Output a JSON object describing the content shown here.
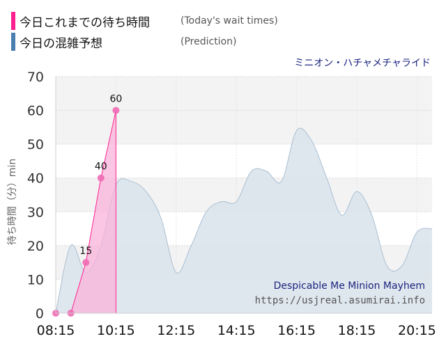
{
  "legend": {
    "actual_label": "今日これまでの待ち時間",
    "actual_label_en": "(Today's wait times)",
    "prediction_label": "今日の混雑予想",
    "prediction_label_en": "(Prediction)"
  },
  "ride_name": "ミニオン・ハチャメチャライド",
  "watermark": {
    "title_en": "Despicable Me Minion Mayhem",
    "url": "https://usjreal.asumirai.info"
  },
  "colors": {
    "actual": "#ff1f8f",
    "prediction": "#4a7fb0",
    "prediction_fill": "#dbe4ec",
    "actual_fill": "#f9b3da",
    "band": "#f3f3f3"
  },
  "chart_data": {
    "type": "area",
    "ylabel": "待ち時間（分）min",
    "ylim": [
      0,
      70
    ],
    "yticks": [
      "0",
      "10",
      "20",
      "30",
      "40",
      "50",
      "60",
      "70"
    ],
    "xlim": [
      "08:15",
      "20:45"
    ],
    "xticks": [
      "08:15",
      "10:15",
      "12:15",
      "14:15",
      "16:15",
      "18:15",
      "20:15"
    ],
    "grid": true,
    "series": [
      {
        "name": "今日の混雑予想",
        "x": [
          "08:15",
          "08:45",
          "09:15",
          "09:45",
          "10:15",
          "10:45",
          "11:15",
          "11:45",
          "12:15",
          "12:45",
          "13:15",
          "13:45",
          "14:15",
          "14:45",
          "15:15",
          "15:45",
          "16:15",
          "16:45",
          "17:15",
          "17:45",
          "18:15",
          "18:45",
          "19:15",
          "19:45",
          "20:15",
          "20:45"
        ],
        "values": [
          0,
          20,
          12,
          20,
          38,
          39,
          36,
          28,
          12,
          20,
          30,
          33,
          33,
          42,
          42,
          39,
          54,
          51,
          40,
          29,
          36,
          29,
          14,
          14,
          24,
          25
        ]
      },
      {
        "name": "今日これまでの待ち時間",
        "x": [
          "08:15",
          "08:45",
          "09:15",
          "09:45",
          "10:15"
        ],
        "values": [
          0,
          0,
          15,
          40,
          60
        ],
        "labels": [
          "",
          "",
          "15",
          "40",
          "60"
        ]
      }
    ]
  }
}
